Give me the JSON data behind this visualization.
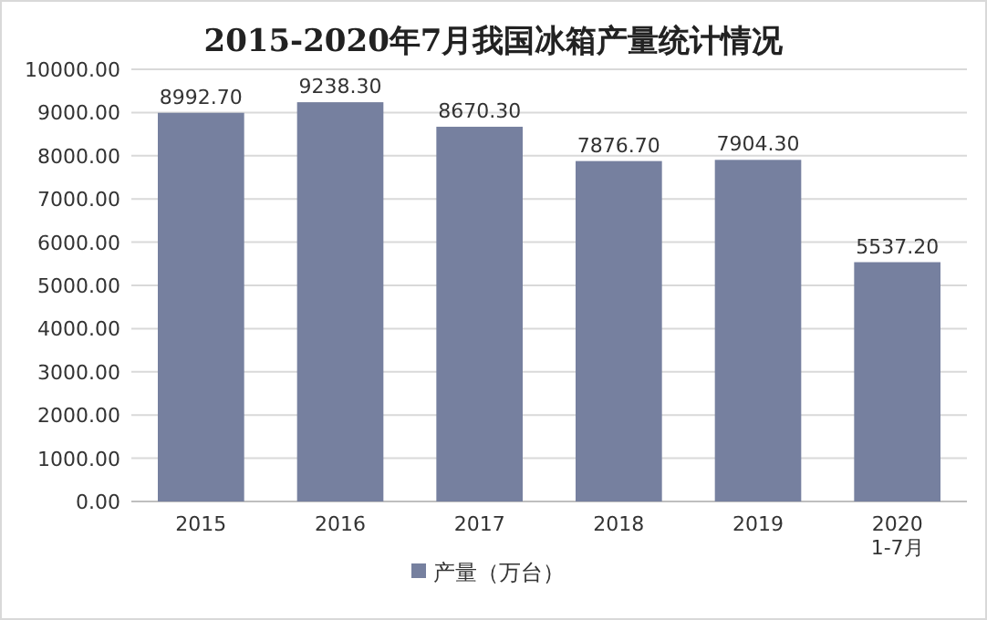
{
  "chart_data": {
    "type": "bar",
    "title": "2015-2020年7月我国冰箱产量统计情况",
    "categories": [
      "2015",
      "2016",
      "2017",
      "2018",
      "2019",
      "2020\n1-7月"
    ],
    "series": [
      {
        "name": "产量（万台）",
        "color": "#76809f",
        "values": [
          8992.7,
          9238.3,
          8670.3,
          7876.7,
          7904.3,
          5537.2
        ],
        "value_labels": [
          "8992.70",
          "9238.30",
          "8670.30",
          "7876.70",
          "7904.30",
          "5537.20"
        ]
      }
    ],
    "ylim": [
      0,
      10000
    ],
    "yticks": [
      {
        "value": 0,
        "label": "0.00"
      },
      {
        "value": 1000,
        "label": "1000.00"
      },
      {
        "value": 2000,
        "label": "2000.00"
      },
      {
        "value": 3000,
        "label": "3000.00"
      },
      {
        "value": 4000,
        "label": "4000.00"
      },
      {
        "value": 5000,
        "label": "5000.00"
      },
      {
        "value": 6000,
        "label": "6000.00"
      },
      {
        "value": 7000,
        "label": "7000.00"
      },
      {
        "value": 8000,
        "label": "8000.00"
      },
      {
        "value": 9000,
        "label": "9000.00"
      },
      {
        "value": 10000,
        "label": "10000.00"
      }
    ],
    "grid": "y",
    "legend": "bottom"
  }
}
